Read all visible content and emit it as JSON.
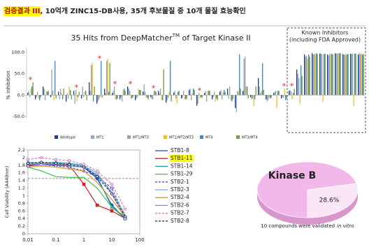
{
  "header": {
    "highlight": "검증결과 III",
    "text": ", 10억개 ZINC15-DB사용,  35개 후보물질 중 10개 물질 효능확인"
  },
  "chart_data": [
    {
      "type": "bar",
      "title": "35 Hits from DeepMatcher",
      "title_sup": "TM",
      "title_end": " of Target Kinase II",
      "known_label": [
        "Known Inhibitors",
        "(including FDA Approved)"
      ],
      "y_label": "% inhibition",
      "ylim": [
        -55,
        105
      ],
      "yticks": [
        {
          "value": 100,
          "label": "100.0"
        },
        {
          "value": 50,
          "label": "50.0"
        },
        {
          "value": 0,
          "label": "0.0"
        },
        {
          "value": -50,
          "label": "-50.0"
        }
      ],
      "grid": false,
      "annotations": [
        {
          "text": "*",
          "index": 0
        },
        {
          "text": "*",
          "index": 6
        },
        {
          "text": "*",
          "index": 9
        },
        {
          "text": "*",
          "index": 11
        },
        {
          "text": "*",
          "index": 13
        },
        {
          "text": "*",
          "index": 16
        },
        {
          "text": "*",
          "index": 22
        },
        {
          "text": "*",
          "index": 33
        },
        {
          "text": "*",
          "index": 34
        }
      ],
      "series": [
        {
          "name": "Wildtype",
          "color": "#1f3f8f",
          "values": [
            5,
            -10,
            20,
            -5,
            8,
            -15,
            10,
            -8,
            30,
            -20,
            15,
            5,
            -10,
            20,
            -12,
            8,
            -5,
            10,
            -18,
            6,
            -8,
            12,
            -25,
            5,
            -10,
            8,
            15,
            -30,
            10,
            -5,
            40,
            -10,
            5,
            -8,
            10,
            60,
            95,
            98,
            97,
            95,
            98,
            96,
            97,
            95
          ]
        },
        {
          "name": "MT1",
          "color": "#8fa8c8",
          "values": [
            10,
            -5,
            15,
            60,
            -10,
            5,
            -20,
            20,
            10,
            -15,
            5,
            10,
            -5,
            15,
            -8,
            25,
            -10,
            5,
            -12,
            10,
            -6,
            15,
            -20,
            10,
            -5,
            12,
            -8,
            -40,
            85,
            -10,
            20,
            -15,
            8,
            -5,
            12,
            50,
            90,
            95,
            98,
            92,
            97,
            95,
            96,
            98
          ]
        },
        {
          "name": "MT1/MT3",
          "color": "#a0a0a0",
          "values": [
            -5,
            8,
            -12,
            10,
            15,
            -8,
            12,
            -5,
            70,
            -10,
            80,
            20,
            -15,
            10,
            -5,
            8,
            -10,
            15,
            -6,
            -8,
            10,
            -12,
            5,
            -15,
            8,
            -10,
            20,
            10,
            90,
            -8,
            5,
            -12,
            10,
            -6,
            8,
            40,
            92,
            97,
            95,
            96,
            98,
            95,
            97,
            96
          ]
        },
        {
          "name": "MT1/MT2/MT3",
          "color": "#f0c020",
          "values": [
            15,
            -8,
            10,
            -12,
            5,
            20,
            -15,
            8,
            75,
            -5,
            85,
            -10,
            12,
            -8,
            15,
            -6,
            10,
            -12,
            8,
            -20,
            -10,
            5,
            -8,
            10,
            -15,
            6,
            -12,
            8,
            20,
            -25,
            10,
            -5,
            -30,
            15,
            -10,
            -20,
            85,
            95,
            -15,
            96,
            97,
            94,
            -25,
            98
          ]
        },
        {
          "name": "MT4",
          "color": "#3a8ad0",
          "values": [
            20,
            -12,
            8,
            80,
            -10,
            12,
            -5,
            10,
            -15,
            80,
            8,
            -10,
            15,
            -8,
            12,
            -6,
            10,
            -12,
            80,
            8,
            -10,
            15,
            -5,
            10,
            -8,
            12,
            -15,
            95,
            20,
            -10,
            75,
            -8,
            10,
            -12,
            5,
            70,
            95,
            98,
            96,
            97,
            98,
            96,
            97,
            95
          ]
        },
        {
          "name": "MT3/MT4",
          "color": "#70a040",
          "values": [
            30,
            -5,
            10,
            -8,
            15,
            -10,
            8,
            -12,
            20,
            -6,
            75,
            -8,
            10,
            -5,
            12,
            -10,
            8,
            60,
            -15,
            10,
            -8,
            12,
            -6,
            10,
            -12,
            8,
            -10,
            15,
            -8,
            20,
            12,
            -6,
            10,
            -8,
            15,
            45,
            90,
            96,
            97,
            95,
            98,
            96,
            97,
            96
          ]
        }
      ]
    },
    {
      "type": "line",
      "y_label": "Cell Viability (A440nm)",
      "log_x": true,
      "x": [
        0.01,
        0.03,
        0.1,
        0.3,
        1,
        3,
        10,
        30
      ],
      "xlim": [
        0.01,
        100
      ],
      "xticks": [
        0.01,
        0.1,
        1,
        10,
        100
      ],
      "ylim": [
        0,
        2.2
      ],
      "yticks": [
        0,
        0.2,
        0.4,
        0.6,
        0.8,
        1,
        1.2,
        1.4,
        1.6,
        1.8,
        2,
        2.2
      ],
      "threshold": 1.45,
      "threshold_color": "#e04040",
      "series": [
        {
          "name": "STB1-8",
          "color": "#2040c0",
          "marker": "diamond",
          "dash": false,
          "values": [
            1.78,
            1.82,
            1.8,
            1.78,
            1.75,
            1.45,
            0.75,
            0.4
          ]
        },
        {
          "name": "STB1-11",
          "color": "#d02020",
          "marker": "square",
          "dash": false,
          "highlight": true,
          "values": [
            1.8,
            1.85,
            1.83,
            1.8,
            1.3,
            0.75,
            0.6,
            0.4
          ]
        },
        {
          "name": "STB1-14",
          "color": "#20a0b0",
          "marker": "triangle",
          "dash": false,
          "values": [
            1.88,
            1.85,
            1.88,
            1.85,
            1.8,
            1.5,
            0.7,
            0.4
          ]
        },
        {
          "name": "STB1-29",
          "color": "#40c040",
          "marker": null,
          "dash": false,
          "values": [
            1.75,
            1.65,
            1.5,
            1.48,
            1.48,
            1.2,
            0.7,
            0.45
          ]
        },
        {
          "name": "STB2-1",
          "color": "#5050c0",
          "marker": "circle",
          "dash": true,
          "values": [
            1.78,
            1.82,
            1.78,
            1.75,
            1.65,
            1.5,
            1.2,
            0.45
          ]
        },
        {
          "name": "STB2-3",
          "color": "#70b0e0",
          "marker": "circle",
          "dash": false,
          "values": [
            1.85,
            1.82,
            1.85,
            1.82,
            1.78,
            1.6,
            1.05,
            0.4
          ]
        },
        {
          "name": "STB2-4",
          "color": "#e09030",
          "marker": null,
          "dash": false,
          "values": [
            1.75,
            1.78,
            1.75,
            1.7,
            1.65,
            1.35,
            0.9,
            0.45
          ]
        },
        {
          "name": "STB2-6",
          "color": "#8090b0",
          "marker": null,
          "dash": false,
          "values": [
            1.82,
            1.85,
            1.82,
            1.78,
            1.75,
            1.55,
            1.1,
            0.5
          ]
        },
        {
          "name": "STB2-7",
          "color": "#e070c0",
          "marker": "circle",
          "dash": true,
          "values": [
            1.95,
            2.0,
            1.95,
            1.92,
            1.82,
            1.65,
            1.3,
            0.65
          ]
        },
        {
          "name": "STB2-8",
          "color": "#303070",
          "marker": "circle",
          "dash": true,
          "values": [
            1.85,
            1.88,
            1.85,
            1.82,
            1.75,
            1.5,
            1.05,
            0.45
          ]
        }
      ]
    },
    {
      "type": "pie",
      "title": "Kinase B",
      "values": [
        71.4,
        28.6
      ],
      "value_labels": [
        null,
        "28.6%"
      ],
      "colors": [
        "#f2b8ea",
        "#fbe6f7"
      ],
      "caption": "10 compounds were validated",
      "caption_italic": "in vitro"
    }
  ]
}
